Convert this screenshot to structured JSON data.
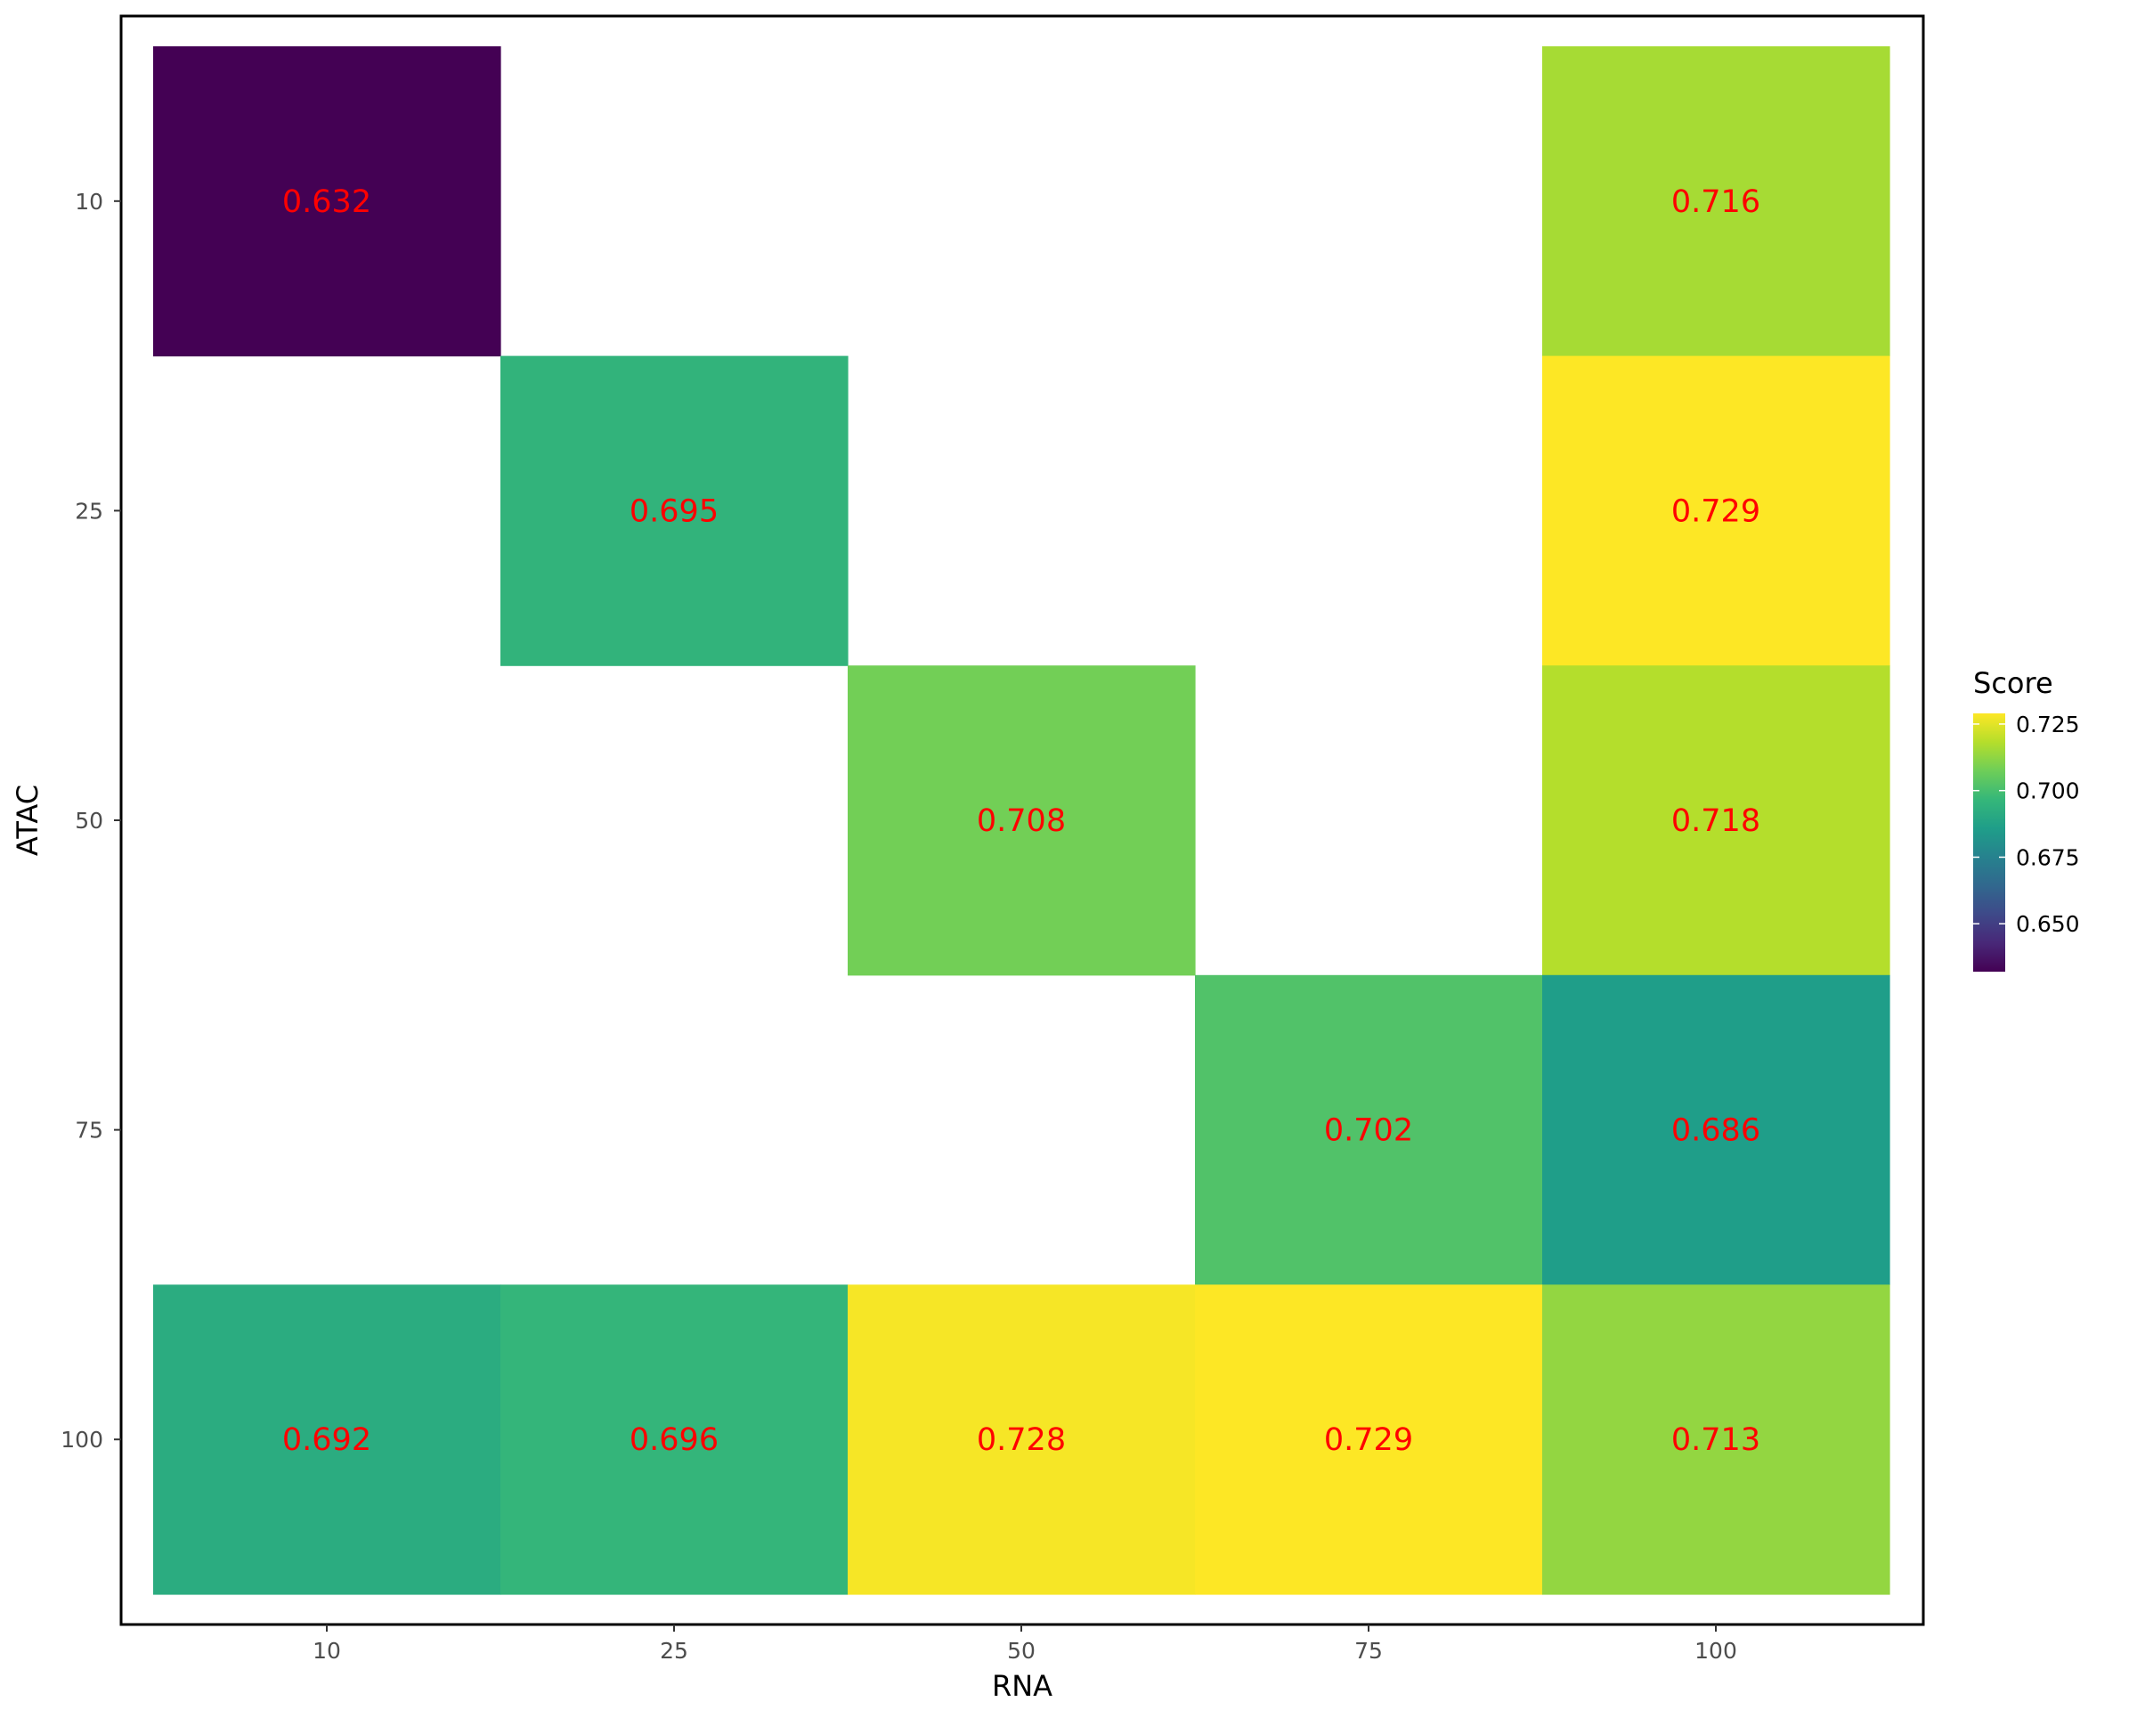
{
  "chart_data": {
    "type": "heatmap",
    "title": "",
    "xlabel": "RNA",
    "ylabel": "ATAC",
    "x_categories": [
      "10",
      "25",
      "50",
      "75",
      "100"
    ],
    "y_categories": [
      "10",
      "25",
      "50",
      "75",
      "100"
    ],
    "cells": [
      {
        "x": "10",
        "y": "10",
        "value": 0.632,
        "label": "0.632"
      },
      {
        "x": "100",
        "y": "10",
        "value": 0.716,
        "label": "0.716"
      },
      {
        "x": "25",
        "y": "25",
        "value": 0.695,
        "label": "0.695"
      },
      {
        "x": "100",
        "y": "25",
        "value": 0.729,
        "label": "0.729"
      },
      {
        "x": "50",
        "y": "50",
        "value": 0.708,
        "label": "0.708"
      },
      {
        "x": "100",
        "y": "50",
        "value": 0.718,
        "label": "0.718"
      },
      {
        "x": "75",
        "y": "75",
        "value": 0.702,
        "label": "0.702"
      },
      {
        "x": "100",
        "y": "75",
        "value": 0.686,
        "label": "0.686"
      },
      {
        "x": "10",
        "y": "100",
        "value": 0.692,
        "label": "0.692"
      },
      {
        "x": "25",
        "y": "100",
        "value": 0.696,
        "label": "0.696"
      },
      {
        "x": "50",
        "y": "100",
        "value": 0.728,
        "label": "0.728"
      },
      {
        "x": "75",
        "y": "100",
        "value": 0.729,
        "label": "0.729"
      },
      {
        "x": "100",
        "y": "100",
        "value": 0.713,
        "label": "0.713"
      }
    ],
    "legend": {
      "title": "Score",
      "placement": "right",
      "range": [
        0.632,
        0.729
      ],
      "ticks": [
        {
          "value": 0.65,
          "label": "0.650"
        },
        {
          "value": 0.675,
          "label": "0.675"
        },
        {
          "value": 0.7,
          "label": "0.700"
        },
        {
          "value": 0.725,
          "label": "0.725"
        }
      ]
    },
    "colormap": "viridis",
    "cell_label_color": "#ff0000",
    "grid": false
  }
}
